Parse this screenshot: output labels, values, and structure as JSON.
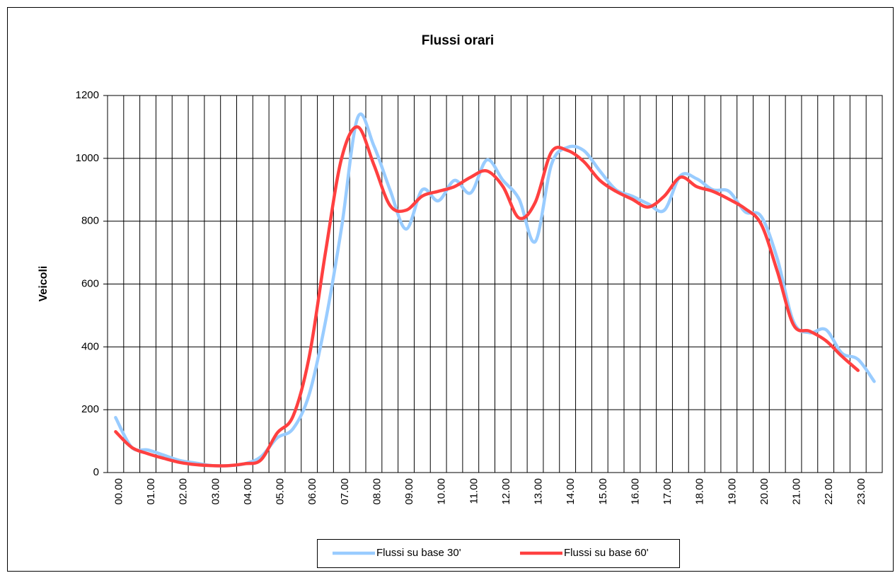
{
  "chart_data": {
    "type": "line",
    "title": "Flussi orari",
    "ylabel": "Veicoli",
    "categories": [
      "00.00",
      null,
      "01.00",
      null,
      "02.00",
      null,
      "03.00",
      null,
      "04.00",
      null,
      "05.00",
      null,
      "06.00",
      null,
      "07.00",
      null,
      "08.00",
      null,
      "09.00",
      null,
      "10.00",
      null,
      "11.00",
      null,
      "12.00",
      null,
      "13.00",
      null,
      "14.00",
      null,
      "15.00",
      null,
      "16.00",
      null,
      "17.00",
      null,
      "18.00",
      null,
      "19.00",
      null,
      "20.00",
      null,
      "21.00",
      null,
      "22.00",
      null,
      "23.00",
      null
    ],
    "series": [
      {
        "name": "Flussi su base 30'",
        "color": "#99ccff",
        "values": [
          175,
          80,
          72,
          55,
          38,
          30,
          22,
          22,
          28,
          50,
          110,
          140,
          250,
          480,
          780,
          1130,
          1040,
          900,
          775,
          900,
          865,
          930,
          890,
          995,
          930,
          870,
          735,
          980,
          1035,
          1025,
          960,
          900,
          880,
          855,
          835,
          945,
          935,
          900,
          895,
          830,
          815,
          680,
          480,
          445,
          455,
          380,
          360,
          290
        ]
      },
      {
        "name": "Flussi su base 60'",
        "color": "#ff4040",
        "values": [
          130,
          80,
          60,
          45,
          32,
          25,
          22,
          22,
          28,
          40,
          125,
          180,
          370,
          700,
          1000,
          1100,
          980,
          850,
          835,
          880,
          895,
          910,
          940,
          960,
          910,
          810,
          860,
          1020,
          1025,
          990,
          930,
          895,
          870,
          845,
          880,
          940,
          910,
          895,
          870,
          840,
          790,
          640,
          470,
          450,
          420,
          370,
          325,
          null
        ]
      }
    ],
    "ylim": [
      0,
      1200
    ],
    "yticks": [
      0,
      200,
      400,
      600,
      800,
      1000,
      1200
    ],
    "grid": true,
    "legend": "bottom"
  }
}
